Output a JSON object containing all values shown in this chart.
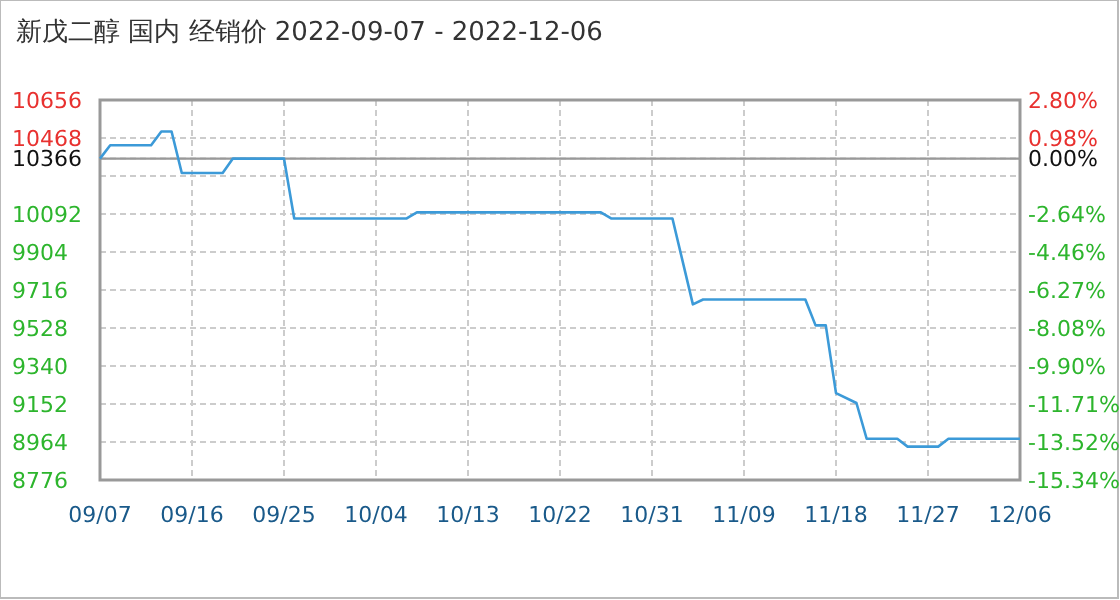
{
  "chart_data": {
    "type": "line",
    "title": "新戊二醇 国内 经销价 2022-09-07 - 2022-12-06",
    "x": [
      "2022-09-07",
      "2022-09-08",
      "2022-09-12",
      "2022-09-13",
      "2022-09-14",
      "2022-09-15",
      "2022-09-19",
      "2022-09-20",
      "2022-09-25",
      "2022-09-26",
      "2022-10-07",
      "2022-10-08",
      "2022-10-26",
      "2022-10-27",
      "2022-11-02",
      "2022-11-04",
      "2022-11-05",
      "2022-11-15",
      "2022-11-16",
      "2022-11-17",
      "2022-11-18",
      "2022-11-20",
      "2022-11-21",
      "2022-11-24",
      "2022-11-25",
      "2022-11-28",
      "2022-11-29",
      "2022-12-06"
    ],
    "series": [
      {
        "color": "#3c9ad8",
        "values": [
          10366,
          10432,
          10432,
          10500,
          10500,
          10295,
          10295,
          10366,
          10366,
          10070,
          10070,
          10100,
          10100,
          10070,
          10070,
          9645,
          9669,
          9669,
          9541,
          9541,
          9206,
          9157,
          8980,
          8980,
          8941,
          8941,
          8980,
          8980
        ]
      }
    ],
    "xlim": [
      "2022-09-07",
      "2022-12-06"
    ],
    "xticks": [
      {
        "value": "2022-09-07",
        "label": "09/07"
      },
      {
        "value": "2022-09-16",
        "label": "09/16"
      },
      {
        "value": "2022-09-25",
        "label": "09/25"
      },
      {
        "value": "2022-10-04",
        "label": "10/04"
      },
      {
        "value": "2022-10-13",
        "label": "10/13"
      },
      {
        "value": "2022-10-22",
        "label": "10/22"
      },
      {
        "value": "2022-10-31",
        "label": "10/31"
      },
      {
        "value": "2022-11-09",
        "label": "11/09"
      },
      {
        "value": "2022-11-18",
        "label": "11/18"
      },
      {
        "value": "2022-11-27",
        "label": "11/27"
      },
      {
        "value": "2022-12-06",
        "label": "12/06"
      }
    ],
    "ylim": [
      8776,
      10656
    ],
    "yticks": [
      10656,
      10468,
      10366,
      {
        "value": 10280,
        "label": null
      },
      10092,
      9904,
      9716,
      9528,
      9340,
      9152,
      8964,
      8776
    ],
    "y2lim": [
      -15.34,
      2.8
    ],
    "y2ticks": [
      {
        "value": 2.8,
        "label": "2.80%"
      },
      {
        "value": 0.98,
        "label": "0.98%"
      },
      {
        "value": 0,
        "label": "0.00%"
      },
      {
        "value": -2.64,
        "label": "-2.64%"
      },
      {
        "value": -4.46,
        "label": "-4.46%"
      },
      {
        "value": -6.27,
        "label": "-6.27%"
      },
      {
        "value": -8.08,
        "label": "-8.08%"
      },
      {
        "value": -9.9,
        "label": "-9.90%"
      },
      {
        "value": -11.71,
        "label": "-11.71%"
      },
      {
        "value": -13.52,
        "label": "-13.52%"
      },
      {
        "value": -15.34,
        "label": "-15.34%"
      }
    ],
    "ref_lines": [
      {
        "axis": "y",
        "value": 10366,
        "color": "#999999",
        "line_style": "solid"
      }
    ],
    "grid": true,
    "marker": "none",
    "line_style": "solid"
  }
}
